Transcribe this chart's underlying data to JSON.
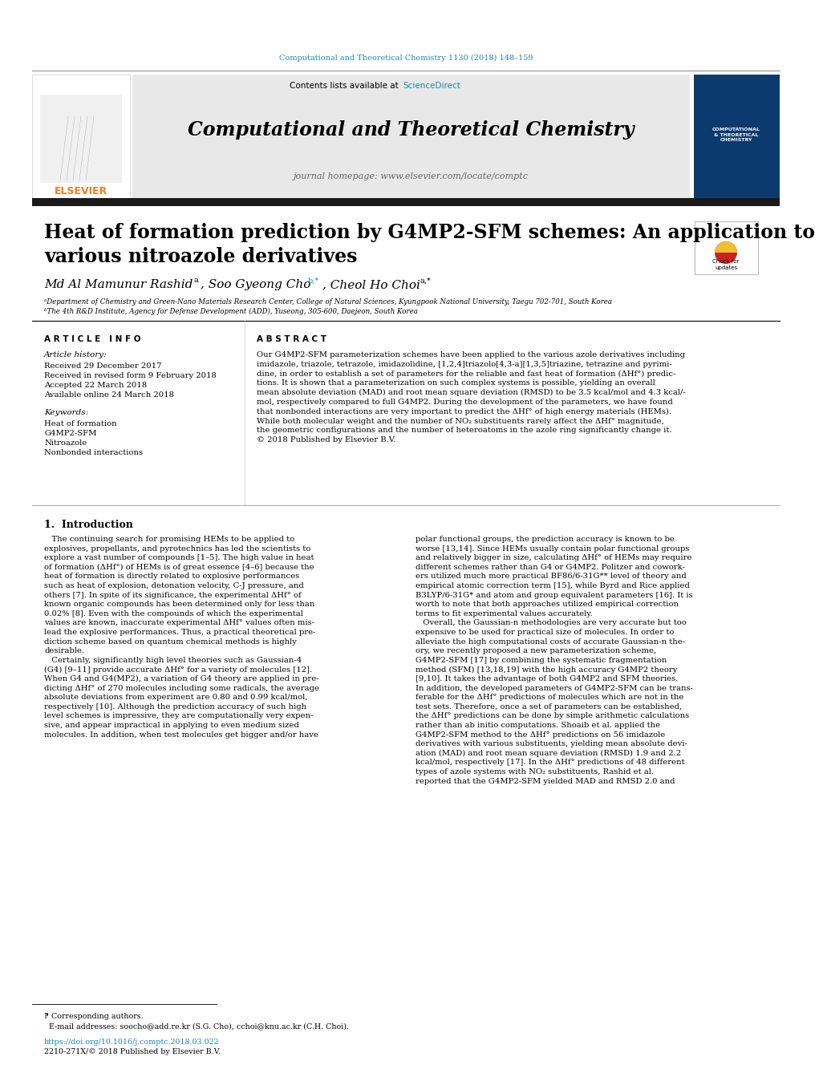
{
  "page_bg": "#ffffff",
  "header_url_color": "#1a8ab5",
  "header_url_text": "Computational and Theoretical Chemistry 1130 (2018) 148–159",
  "elsevier_color": "#f47920",
  "journal_header_bg": "#e8e8e8",
  "journal_title": "Computational and Theoretical Chemistry",
  "journal_homepage": "journal homepage: www.elsevier.com/locate/comptc",
  "sciencedirect_text": "Contents lists available at ",
  "sciencedirect_link": "ScienceDirect",
  "dark_bar_color": "#1a1a1a",
  "paper_title_line1": "Heat of formation prediction by G4MP2-SFM schemes: An application to",
  "paper_title_line2": "various nitroazole derivatives",
  "author1": "Md Al Mamunur Rashid",
  "author1_sup": "a",
  "author2": ", Soo Gyeong Cho",
  "author2_sup": "b,*",
  "author3": ", Cheol Ho Choi",
  "author3_sup": "a,*",
  "affil_a": "ᵃDepartment of Chemistry and Green-Nano Materials Research Center, College of Natural Sciences, Kyungpook National University, Taegu 702-701, South Korea",
  "affil_b": "ᵇThe 4th R&D Institute, Agency for Defense Development (ADD), Yuseong, 305-600, Daejeon, South Korea",
  "article_info_title": "A R T I C L E   I N F O",
  "article_history_title": "Article history:",
  "received1": "Received 29 December 2017",
  "received2": "Received in revised form 9 February 2018",
  "accepted": "Accepted 22 March 2018",
  "available": "Available online 24 March 2018",
  "keywords_title": "Keywords:",
  "keywords": [
    "Heat of formation",
    "G4MP2-SFM",
    "Nitroazole",
    "Nonbonded interactions"
  ],
  "abstract_title": "A B S T R A C T",
  "abstract_text": "Our G4MP2-SFM parameterization schemes have been applied to the various azole derivatives including\nimidazole, triazole, tetrazole, imidazolidine, [1,2,4]triazolo[4,3-a][1,3,5]triazine, tetrazine and pyrimi-\ndine, in order to establish a set of parameters for the reliable and fast heat of formation (ΔHf°) predic-\ntions. It is shown that a parameterization on such complex systems is possible, yielding an overall\nmean absolute deviation (MAD) and root mean square deviation (RMSD) to be 3.5 kcal/mol and 4.3 kcal/-\nmol, respectively compared to full G4MP2. During the development of the parameters, we have found\nthat nonbonded interactions are very important to predict the ΔHf° of high energy materials (HEMs).\nWhile both molecular weight and the number of NO₂ substituents rarely affect the ΔHf° magnitude,\nthe geometric configurations and the number of heteroatoms in the azole ring significantly change it.\n© 2018 Published by Elsevier B.V.",
  "intro_title": "1.  Introduction",
  "intro_col1_lines": [
    "   The continuing search for promising HEMs to be applied to",
    "explosives, propellants, and pyrotechnics has led the scientists to",
    "explore a vast number of compounds [1–5]. The high value in heat",
    "of formation (ΔHf°) of HEMs is of great essence [4–6] because the",
    "heat of formation is directly related to explosive performances",
    "such as heat of explosion, detonation velocity, C-J pressure, and",
    "others [7]. In spite of its significance, the experimental ΔHf° of",
    "known organic compounds has been determined only for less than",
    "0.02% [8]. Even with the compounds of which the experimental",
    "values are known, inaccurate experimental ΔHf° values often mis-",
    "lead the explosive performances. Thus, a practical theoretical pre-",
    "diction scheme based on quantum chemical methods is highly",
    "desirable.",
    "   Certainly, significantly high level theories such as Gaussian-4",
    "(G4) [9–11] provide accurate ΔHf° for a variety of molecules [12].",
    "When G4 and G4(MP2), a variation of G4 theory are applied in pre-",
    "dicting ΔHf° of 270 molecules including some radicals, the average",
    "absolute deviations from experiment are 0.80 and 0.99 kcal/mol,",
    "respectively [10]. Although the prediction accuracy of such high",
    "level schemes is impressive, they are computationally very expen-",
    "sive, and appear impractical in applying to even medium sized",
    "molecules. In addition, when test molecules get bigger and/or have"
  ],
  "intro_col2_lines": [
    "polar functional groups, the prediction accuracy is known to be",
    "worse [13,14]. Since HEMs usually contain polar functional groups",
    "and relatively bigger in size, calculating ΔHf° of HEMs may require",
    "different schemes rather than G4 or G4MP2. Politzer and cowork-",
    "ers utilized much more practical BF86/6-31G** level of theory and",
    "empirical atomic correction term [15], while Byrd and Rice applied",
    "B3LYP/6-31G* and atom and group equivalent parameters [16]. It is",
    "worth to note that both approaches utilized empirical correction",
    "terms to fit experimental values accurately.",
    "   Overall, the Gaussian-n methodologies are very accurate but too",
    "expensive to be used for practical size of molecules. In order to",
    "alleviate the high computational costs of accurate Gaussian-n the-",
    "ory, we recently proposed a new parameterization scheme,",
    "G4MP2-SFM [17] by combining the systematic fragmentation",
    "method (SFM) [13,18,19] with the high accuracy G4MP2 theory",
    "[9,10]. It takes the advantage of both G4MP2 and SFM theories.",
    "In addition, the developed parameters of G4MP2-SFM can be trans-",
    "ferable for the ΔHf° predictions of molecules which are not in the",
    "test sets. Therefore, once a set of parameters can be established,",
    "the ΔHf° predictions can be done by simple arithmetic calculations",
    "rather than ab initio computations. Shoaib et al. applied the",
    "G4MP2-SFM method to the ΔHf° predictions on 56 imidazole",
    "derivatives with various substituents, yielding mean absolute devi-",
    "ation (MAD) and root mean square deviation (RMSD) 1.9 and 2.2",
    "kcal/mol, respectively [17]. In the ΔHf° predictions of 48 different",
    "types of azole systems with NO₂ substituents, Rashid et al.",
    "reported that the G4MP2-SFM yielded MAD and RMSD 2.0 and"
  ],
  "footnote_star": "⁋ Corresponding authors.",
  "footnote_email": "  E-mail addresses: soocho@add.re.kr (S.G. Cho), cchoi@knu.ac.kr (C.H. Choi).",
  "doi_line1": "https://doi.org/10.1016/j.comptc.2018.03.022",
  "doi_line2": "2210-271X/© 2018 Published by Elsevier B.V."
}
